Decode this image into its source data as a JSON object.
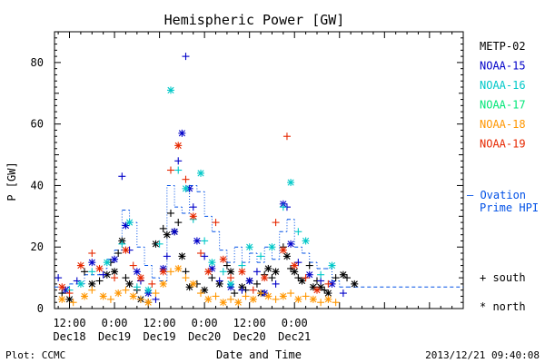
{
  "chart_data": {
    "type": "scatter",
    "title": "Hemispheric Power [GW]",
    "xlabel": "Date and Time",
    "ylabel": "P [GW]",
    "x_unit": "hours since 2013-12-18 00:00 UT",
    "xlim": [
      8,
      117
    ],
    "ylim": [
      0,
      90
    ],
    "yticks": [
      0,
      20,
      40,
      60,
      80
    ],
    "xticks": [
      {
        "x": 12,
        "time": "12:00",
        "day": "Dec18"
      },
      {
        "x": 24,
        "time": "0:00",
        "day": "Dec19"
      },
      {
        "x": 36,
        "time": "12:00",
        "day": "Dec19"
      },
      {
        "x": 48,
        "time": "0:00",
        "day": "Dec20"
      },
      {
        "x": 60,
        "time": "12:00",
        "day": "Dec20"
      },
      {
        "x": 72,
        "time": "0:00",
        "day": "Dec21"
      }
    ],
    "legend_position": "right",
    "marker_legend": {
      "south": "+ south",
      "north": "* north"
    },
    "series": [
      {
        "name": "METP-02",
        "color": "#000000",
        "points": [
          [
            10,
            5,
            "s"
          ],
          [
            12,
            3,
            "n"
          ],
          [
            16,
            12,
            "s"
          ],
          [
            18,
            8,
            "n"
          ],
          [
            20,
            9,
            "s"
          ],
          [
            22,
            11,
            "n"
          ],
          [
            23,
            15,
            "s"
          ],
          [
            24,
            12,
            "n"
          ],
          [
            25,
            18,
            "s"
          ],
          [
            26,
            22,
            "n"
          ],
          [
            27,
            10,
            "s"
          ],
          [
            28,
            8,
            "n"
          ],
          [
            30,
            6,
            "s"
          ],
          [
            31,
            3,
            "n"
          ],
          [
            33,
            2,
            "s"
          ],
          [
            35,
            21,
            "n"
          ],
          [
            37,
            26,
            "s"
          ],
          [
            38,
            24,
            "n"
          ],
          [
            39,
            31,
            "s"
          ],
          [
            40,
            25,
            "n"
          ],
          [
            41,
            28,
            "s"
          ],
          [
            42,
            17,
            "n"
          ],
          [
            43,
            12,
            "s"
          ],
          [
            44,
            7,
            "n"
          ],
          [
            46,
            8,
            "s"
          ],
          [
            48,
            6,
            "n"
          ],
          [
            50,
            10,
            "s"
          ],
          [
            52,
            8,
            "n"
          ],
          [
            54,
            14,
            "s"
          ],
          [
            55,
            12,
            "n"
          ],
          [
            56,
            5,
            "s"
          ],
          [
            58,
            7,
            "n"
          ],
          [
            59,
            6,
            "s"
          ],
          [
            60,
            9,
            "n"
          ],
          [
            62,
            8,
            "s"
          ],
          [
            63,
            5,
            "n"
          ],
          [
            64,
            11,
            "s"
          ],
          [
            65,
            13,
            "n"
          ],
          [
            66,
            10,
            "s"
          ],
          [
            67,
            12,
            "n"
          ],
          [
            69,
            20,
            "s"
          ],
          [
            70,
            17,
            "n"
          ],
          [
            71,
            13,
            "s"
          ],
          [
            72,
            12,
            "n"
          ],
          [
            73,
            10,
            "s"
          ],
          [
            74,
            9,
            "n"
          ],
          [
            76,
            14,
            "s"
          ],
          [
            77,
            7,
            "n"
          ],
          [
            78,
            9,
            "s"
          ],
          [
            79,
            7,
            "n"
          ],
          [
            80,
            6,
            "s"
          ],
          [
            81,
            5,
            "n"
          ],
          [
            83,
            10,
            "s"
          ],
          [
            85,
            11,
            "n"
          ],
          [
            86,
            10,
            "s"
          ],
          [
            88,
            8,
            "n"
          ]
        ]
      },
      {
        "name": "NOAA-15",
        "color": "#0000c8",
        "points": [
          [
            9,
            10,
            "s"
          ],
          [
            11,
            6,
            "n"
          ],
          [
            14,
            9,
            "s"
          ],
          [
            18,
            15,
            "n"
          ],
          [
            21,
            11,
            "s"
          ],
          [
            24,
            16,
            "n"
          ],
          [
            26,
            43,
            "s"
          ],
          [
            27,
            27,
            "n"
          ],
          [
            28,
            19,
            "s"
          ],
          [
            30,
            12,
            "n"
          ],
          [
            31,
            9,
            "s"
          ],
          [
            33,
            5,
            "n"
          ],
          [
            35,
            3,
            "s"
          ],
          [
            37,
            13,
            "n"
          ],
          [
            38,
            17,
            "s"
          ],
          [
            40,
            25,
            "n"
          ],
          [
            41,
            48,
            "s"
          ],
          [
            42,
            57,
            "n"
          ],
          [
            43,
            82,
            "s"
          ],
          [
            44,
            39,
            "n"
          ],
          [
            45,
            33,
            "s"
          ],
          [
            46,
            22,
            "n"
          ],
          [
            48,
            17,
            "s"
          ],
          [
            50,
            13,
            "n"
          ],
          [
            52,
            9,
            "s"
          ],
          [
            55,
            7,
            "n"
          ],
          [
            58,
            6,
            "s"
          ],
          [
            60,
            9,
            "n"
          ],
          [
            62,
            12,
            "s"
          ],
          [
            64,
            5,
            "n"
          ],
          [
            67,
            8,
            "s"
          ],
          [
            69,
            34,
            "n"
          ],
          [
            70,
            33,
            "s"
          ],
          [
            71,
            21,
            "n"
          ],
          [
            73,
            15,
            "s"
          ],
          [
            76,
            11,
            "n"
          ],
          [
            79,
            9,
            "s"
          ],
          [
            82,
            8,
            "n"
          ],
          [
            85,
            5,
            "s"
          ]
        ]
      },
      {
        "name": "NOAA-16",
        "color": "#00c8c8",
        "points": [
          [
            12,
            6,
            "s"
          ],
          [
            15,
            8,
            "n"
          ],
          [
            18,
            12,
            "s"
          ],
          [
            22,
            15,
            "n"
          ],
          [
            26,
            21,
            "s"
          ],
          [
            28,
            28,
            "n"
          ],
          [
            30,
            7,
            "s"
          ],
          [
            33,
            6,
            "n"
          ],
          [
            36,
            21,
            "s"
          ],
          [
            39,
            71,
            "n"
          ],
          [
            41,
            45,
            "s"
          ],
          [
            43,
            39,
            "n"
          ],
          [
            45,
            29,
            "s"
          ],
          [
            47,
            44,
            "n"
          ],
          [
            48,
            22,
            "s"
          ],
          [
            50,
            15,
            "n"
          ],
          [
            53,
            12,
            "s"
          ],
          [
            55,
            8,
            "n"
          ],
          [
            58,
            14,
            "s"
          ],
          [
            60,
            20,
            "n"
          ],
          [
            63,
            17,
            "s"
          ],
          [
            66,
            20,
            "n"
          ],
          [
            69,
            33,
            "s"
          ],
          [
            71,
            41,
            "n"
          ],
          [
            73,
            25,
            "s"
          ],
          [
            75,
            22,
            "n"
          ],
          [
            79,
            11,
            "s"
          ],
          [
            82,
            14,
            "n"
          ]
        ]
      },
      {
        "name": "NOAA-17",
        "color": "#00e678",
        "points": []
      },
      {
        "name": "NOAA-18",
        "color": "#ff9600",
        "points": [
          [
            10,
            3,
            "n"
          ],
          [
            13,
            2,
            "s"
          ],
          [
            16,
            4,
            "n"
          ],
          [
            18,
            6,
            "s"
          ],
          [
            21,
            4,
            "n"
          ],
          [
            23,
            3,
            "s"
          ],
          [
            25,
            5,
            "n"
          ],
          [
            27,
            6,
            "s"
          ],
          [
            29,
            4,
            "n"
          ],
          [
            31,
            3,
            "s"
          ],
          [
            33,
            2,
            "n"
          ],
          [
            35,
            5,
            "s"
          ],
          [
            37,
            8,
            "n"
          ],
          [
            39,
            12,
            "s"
          ],
          [
            41,
            13,
            "n"
          ],
          [
            43,
            10,
            "s"
          ],
          [
            45,
            8,
            "n"
          ],
          [
            47,
            5,
            "s"
          ],
          [
            49,
            3,
            "n"
          ],
          [
            51,
            4,
            "s"
          ],
          [
            53,
            2,
            "n"
          ],
          [
            55,
            3,
            "s"
          ],
          [
            57,
            2,
            "n"
          ],
          [
            59,
            4,
            "s"
          ],
          [
            61,
            3,
            "n"
          ],
          [
            63,
            5,
            "s"
          ],
          [
            65,
            4,
            "n"
          ],
          [
            67,
            3,
            "s"
          ],
          [
            69,
            4,
            "n"
          ],
          [
            71,
            5,
            "s"
          ],
          [
            73,
            3,
            "n"
          ],
          [
            75,
            4,
            "s"
          ],
          [
            77,
            3,
            "n"
          ],
          [
            79,
            2,
            "s"
          ],
          [
            81,
            3,
            "n"
          ],
          [
            83,
            2,
            "s"
          ]
        ]
      },
      {
        "name": "NOAA-19",
        "color": "#e62800",
        "points": [
          [
            10,
            7,
            "n"
          ],
          [
            12,
            5,
            "s"
          ],
          [
            15,
            14,
            "n"
          ],
          [
            18,
            18,
            "s"
          ],
          [
            20,
            13,
            "n"
          ],
          [
            24,
            10,
            "s"
          ],
          [
            27,
            19,
            "n"
          ],
          [
            29,
            14,
            "s"
          ],
          [
            31,
            10,
            "n"
          ],
          [
            34,
            8,
            "s"
          ],
          [
            37,
            12,
            "n"
          ],
          [
            39,
            45,
            "s"
          ],
          [
            41,
            53,
            "n"
          ],
          [
            43,
            42,
            "s"
          ],
          [
            45,
            30,
            "n"
          ],
          [
            47,
            18,
            "s"
          ],
          [
            49,
            12,
            "n"
          ],
          [
            51,
            28,
            "s"
          ],
          [
            53,
            16,
            "n"
          ],
          [
            55,
            10,
            "s"
          ],
          [
            58,
            12,
            "n"
          ],
          [
            61,
            6,
            "s"
          ],
          [
            64,
            10,
            "n"
          ],
          [
            67,
            28,
            "s"
          ],
          [
            69,
            19,
            "n"
          ],
          [
            70,
            56,
            "s"
          ],
          [
            72,
            14,
            "n"
          ],
          [
            75,
            10,
            "s"
          ],
          [
            78,
            6,
            "n"
          ],
          [
            81,
            8,
            "s"
          ]
        ]
      }
    ],
    "ovation": {
      "name": "Ovation Prime HPI",
      "legend_label": "— Ovation",
      "legend_label_2": "Prime HPI",
      "color": "#0050e6",
      "steps": [
        [
          8,
          7
        ],
        [
          12,
          8
        ],
        [
          16,
          11
        ],
        [
          20,
          13
        ],
        [
          22,
          16
        ],
        [
          24,
          19
        ],
        [
          26,
          32
        ],
        [
          28,
          28
        ],
        [
          30,
          20
        ],
        [
          32,
          14
        ],
        [
          34,
          10
        ],
        [
          36,
          9
        ],
        [
          38,
          40
        ],
        [
          40,
          33
        ],
        [
          42,
          31
        ],
        [
          44,
          40
        ],
        [
          46,
          38
        ],
        [
          48,
          30
        ],
        [
          50,
          25
        ],
        [
          52,
          19
        ],
        [
          54,
          15
        ],
        [
          56,
          20
        ],
        [
          58,
          15
        ],
        [
          60,
          18
        ],
        [
          62,
          15
        ],
        [
          64,
          20
        ],
        [
          66,
          16
        ],
        [
          68,
          25
        ],
        [
          70,
          29
        ],
        [
          72,
          20
        ],
        [
          74,
          18
        ],
        [
          76,
          15
        ],
        [
          78,
          13
        ],
        [
          80,
          13
        ],
        [
          82,
          9
        ],
        [
          84,
          7
        ],
        [
          86,
          7
        ],
        [
          88,
          7
        ]
      ]
    }
  },
  "footer": {
    "left": "Plot: CCMC",
    "right": "2013/12/21 09:40:08"
  }
}
